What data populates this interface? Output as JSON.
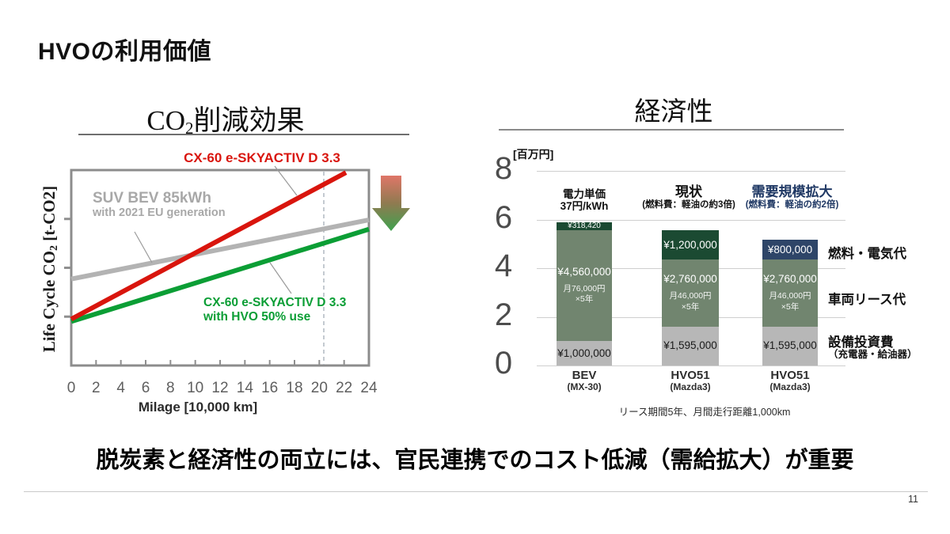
{
  "slide": {
    "title": "HVOの利用価値",
    "key_message": "脱炭素と経済性の両立には、官民連携でのコスト低減（需給拡大）が重要",
    "page_number": "11"
  },
  "colors": {
    "accent_red": "#d9150d",
    "accent_green": "#0b9e35",
    "line_gray": "#b3b3b3",
    "bar_dark_green": "#1b4a32",
    "bar_sage_green": "#71856f",
    "bar_gray": "#b7b7b7",
    "bar_navy": "#2e4568",
    "header_blue": "#1f3864"
  },
  "co2_chart": {
    "title": {
      "pre": "CO",
      "sub": "2",
      "post": "削減効果"
    },
    "y_axis_label": {
      "pre": "Life Cycle CO",
      "sub": "2",
      "post": " [t-CO2]"
    },
    "x_axis_label": "Milage [10,000 km]",
    "x_tick_labels": [
      "0",
      "2",
      "4",
      "6",
      "8",
      "10",
      "12",
      "14",
      "16",
      "18",
      "20",
      "22",
      "24"
    ],
    "arrow_icon": "down-arrow-red-to-green",
    "series_labels": {
      "diesel": "CX-60 e-SKYACTIV D 3.3",
      "bev_1": "SUV BEV 85kWh",
      "bev_2": "with 2021 EU generation",
      "hvo_1": "CX-60 e-SKYACTIV D 3.3",
      "hvo_2": "with HVO 50% use"
    }
  },
  "econ_chart": {
    "title": "経済性",
    "unit_label": "[百万円]",
    "column_headers": [
      {
        "line1": "電力単価",
        "line2": "37円/kWh",
        "color": "#1a1a1a"
      },
      {
        "line1": "現状",
        "line2": "(燃料費：軽油の約3倍)",
        "color": "#1a1a1a"
      },
      {
        "line1": "需要規模拡大",
        "line2": "(燃料費：軽油の約2倍)",
        "color": "#1f3864"
      }
    ],
    "bars": [
      {
        "cat1": "BEV",
        "cat2": "(MX-30)",
        "segments": [
          {
            "value": 1000000,
            "label": "¥1,000,000",
            "bg": "#b7b7b7",
            "fg": "#1a1a1a"
          },
          {
            "value": 4560000,
            "label": "¥4,560,000",
            "subs": [
              "月76,000円",
              "×5年"
            ],
            "bg": "#71856f",
            "fg": "#ffffff"
          },
          {
            "value": 318420,
            "label": "¥318,420",
            "bg": "#1b4a32",
            "fg": "#ffffff"
          }
        ]
      },
      {
        "cat1": "HVO51",
        "cat2": "(Mazda3)",
        "segments": [
          {
            "value": 1595000,
            "label": "¥1,595,000",
            "bg": "#b7b7b7",
            "fg": "#1a1a1a"
          },
          {
            "value": 2760000,
            "label": "¥2,760,000",
            "subs": [
              "月46,000円",
              "×5年"
            ],
            "bg": "#71856f",
            "fg": "#ffffff"
          },
          {
            "value": 1200000,
            "label": "¥1,200,000",
            "bg": "#1b4a32",
            "fg": "#ffffff"
          }
        ]
      },
      {
        "cat1": "HVO51",
        "cat2": "(Mazda3)",
        "segments": [
          {
            "value": 1595000,
            "label": "¥1,595,000",
            "bg": "#b7b7b7",
            "fg": "#1a1a1a"
          },
          {
            "value": 2760000,
            "label": "¥2,760,000",
            "subs": [
              "月46,000円",
              "×5年"
            ],
            "bg": "#71856f",
            "fg": "#ffffff"
          },
          {
            "value": 800000,
            "label": "¥800,000",
            "bg": "#2e4568",
            "fg": "#ffffff"
          }
        ]
      }
    ],
    "legend": {
      "fuel": "燃料・電気代",
      "lease": "車両リース代",
      "equip": "設備投資費",
      "equip_sub": "（充電器・給油器）"
    },
    "footnote": "リース期間5年、月間走行距離1,000km"
  },
  "chart_data": [
    {
      "type": "line",
      "title": "CO2削減効果",
      "xlabel": "Milage [10,000 km]",
      "ylabel": "Life Cycle CO2 [t-CO2]",
      "xlim": [
        0,
        24
      ],
      "x_ticks": [
        0,
        2,
        4,
        6,
        8,
        10,
        12,
        14,
        16,
        18,
        20,
        22,
        24
      ],
      "y_axis_note": "y axis has unlabeled tick marks (relative t-CO2 units, 1 unit per tick)",
      "grid": false,
      "series": [
        {
          "name": "CX-60 e-SKYACTIV D 3.3 (diesel)",
          "color": "#d9150d",
          "points": [
            [
              0,
              0.95
            ],
            [
              22.15,
              3.95
            ]
          ]
        },
        {
          "name": "SUV BEV 85kWh with 2021 EU generation",
          "color": "#b3b3b3",
          "points": [
            [
              0,
              1.77
            ],
            [
              24,
              2.98
            ]
          ]
        },
        {
          "name": "CX-60 e-SKYACTIV D 3.3 with HVO 50% use",
          "color": "#0b9e35",
          "points": [
            [
              0,
              0.9
            ],
            [
              24,
              2.79
            ]
          ]
        }
      ],
      "annotations": [
        {
          "type": "vline",
          "x": 20.35,
          "style": "dashed"
        }
      ]
    },
    {
      "type": "bar",
      "stacked": true,
      "title": "経済性",
      "unit": "百万円",
      "ylim": [
        0,
        8
      ],
      "y_ticks": [
        8,
        6,
        4,
        2,
        0
      ],
      "categories": [
        "BEV (MX-30)",
        "HVO51 (Mazda3)",
        "HVO51 (Mazda3)"
      ],
      "series": [
        {
          "name": "設備投資費（充電器・給油器）",
          "color": "#b7b7b7",
          "values": [
            1000000,
            1595000,
            1595000
          ]
        },
        {
          "name": "車両リース代",
          "color": "#71856f",
          "values": [
            4560000,
            2760000,
            2760000
          ]
        },
        {
          "name": "燃料・電気代",
          "color_by_bar": [
            "#1b4a32",
            "#1b4a32",
            "#2e4568"
          ],
          "values": [
            318420,
            1200000,
            800000
          ]
        }
      ],
      "footnote": "リース期間5年、月間走行距離1,000km"
    }
  ]
}
